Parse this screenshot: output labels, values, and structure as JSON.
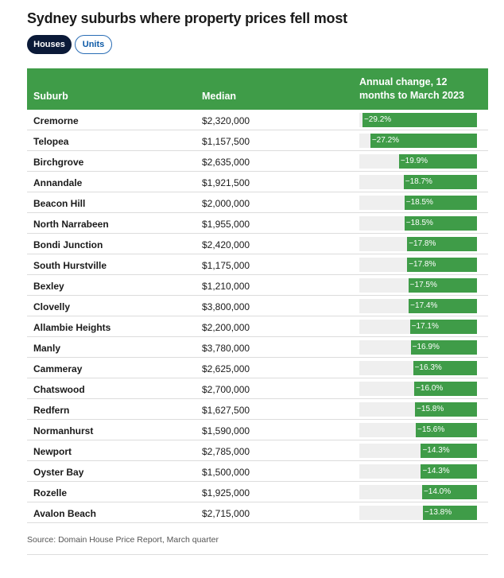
{
  "title": "Sydney suburbs where property prices fell most",
  "toggles": [
    {
      "label": "Houses",
      "active": true
    },
    {
      "label": "Units",
      "active": false
    }
  ],
  "columns": {
    "suburb": "Suburb",
    "median": "Median",
    "change": "Annual change, 12 months to March 2023"
  },
  "colors": {
    "header_bg": "#3f9c48",
    "bar": "#3f9c48",
    "track": "#efefef",
    "active_toggle": "#0b1a38"
  },
  "chart_data": {
    "type": "table",
    "rows": [
      {
        "suburb": "Cremorne",
        "median": "$2,320,000",
        "change": -29.2,
        "label": "−29.2%"
      },
      {
        "suburb": "Telopea",
        "median": "$1,157,500",
        "change": -27.2,
        "label": "−27.2%"
      },
      {
        "suburb": "Birchgrove",
        "median": "$2,635,000",
        "change": -19.9,
        "label": "−19.9%"
      },
      {
        "suburb": "Annandale",
        "median": "$1,921,500",
        "change": -18.7,
        "label": "−18.7%"
      },
      {
        "suburb": "Beacon Hill",
        "median": "$2,000,000",
        "change": -18.5,
        "label": "−18.5%"
      },
      {
        "suburb": "North Narrabeen",
        "median": "$1,955,000",
        "change": -18.5,
        "label": "−18.5%"
      },
      {
        "suburb": "Bondi Junction",
        "median": "$2,420,000",
        "change": -17.8,
        "label": "−17.8%"
      },
      {
        "suburb": "South Hurstville",
        "median": "$1,175,000",
        "change": -17.8,
        "label": "−17.8%"
      },
      {
        "suburb": "Bexley",
        "median": "$1,210,000",
        "change": -17.5,
        "label": "−17.5%"
      },
      {
        "suburb": "Clovelly",
        "median": "$3,800,000",
        "change": -17.4,
        "label": "−17.4%"
      },
      {
        "suburb": "Allambie Heights",
        "median": "$2,200,000",
        "change": -17.1,
        "label": "−17.1%"
      },
      {
        "suburb": "Manly",
        "median": "$3,780,000",
        "change": -16.9,
        "label": "−16.9%"
      },
      {
        "suburb": "Cammeray",
        "median": "$2,625,000",
        "change": -16.3,
        "label": "−16.3%"
      },
      {
        "suburb": "Chatswood",
        "median": "$2,700,000",
        "change": -16.0,
        "label": "−16.0%"
      },
      {
        "suburb": "Redfern",
        "median": "$1,627,500",
        "change": -15.8,
        "label": "−15.8%"
      },
      {
        "suburb": "Normanhurst",
        "median": "$1,590,000",
        "change": -15.6,
        "label": "−15.6%"
      },
      {
        "suburb": "Newport",
        "median": "$2,785,000",
        "change": -14.3,
        "label": "−14.3%"
      },
      {
        "suburb": "Oyster Bay",
        "median": "$1,500,000",
        "change": -14.3,
        "label": "−14.3%"
      },
      {
        "suburb": "Rozelle",
        "median": "$1,925,000",
        "change": -14.0,
        "label": "−14.0%"
      },
      {
        "suburb": "Avalon Beach",
        "median": "$2,715,000",
        "change": -13.8,
        "label": "−13.8%"
      }
    ],
    "xlim": [
      -30,
      0
    ]
  },
  "source": "Source: Domain House Price Report, March quarter"
}
